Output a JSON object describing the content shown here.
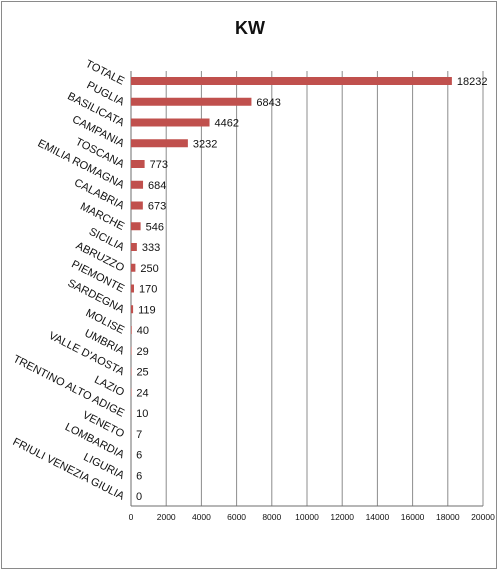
{
  "chart_data": {
    "type": "bar",
    "orientation": "horizontal",
    "title": "KW",
    "categories": [
      "TOTALE",
      "PUGLIA",
      "BASILICATA",
      "CAMPANIA",
      "TOSCANA",
      "EMILIA ROMAGNA",
      "CALABRIA",
      "MARCHE",
      "SICILIA",
      "ABRUZZO",
      "PIEMONTE",
      "SARDEGNA",
      "MOLISE",
      "UMBRIA",
      "VALLE D'AOSTA",
      "LAZIO",
      "TRENTINO ALTO ADIGE",
      "VENETO",
      "LOMBARDIA",
      "LIGURIA",
      "FRIULI VENEZIA GIULIA"
    ],
    "values": [
      18232,
      6843,
      4462,
      3232,
      773,
      684,
      673,
      546,
      333,
      250,
      170,
      119,
      40,
      29,
      25,
      24,
      10,
      7,
      6,
      6,
      0
    ],
    "xticks": [
      0,
      2000,
      4000,
      6000,
      8000,
      10000,
      12000,
      14000,
      16000,
      18000,
      20000
    ],
    "xlim": [
      0,
      20000
    ],
    "grid": true,
    "bar_color": "#c0504d"
  }
}
